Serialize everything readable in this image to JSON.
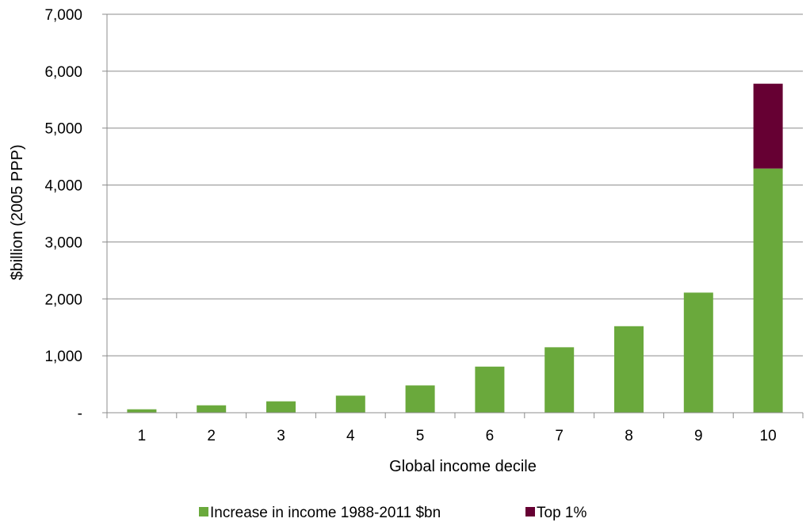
{
  "chart_data": {
    "type": "bar",
    "stacked": true,
    "xlabel": "Global income decile",
    "ylabel": "$billion (2005 PPP)",
    "categories": [
      "1",
      "2",
      "3",
      "4",
      "5",
      "6",
      "7",
      "8",
      "9",
      "10"
    ],
    "ylim": [
      0,
      7000
    ],
    "yticks": [
      {
        "value": 0,
        "label": "-"
      },
      {
        "value": 1000,
        "label": "1,000"
      },
      {
        "value": 2000,
        "label": "2,000"
      },
      {
        "value": 3000,
        "label": "3,000"
      },
      {
        "value": 4000,
        "label": "4,000"
      },
      {
        "value": 5000,
        "label": "5,000"
      },
      {
        "value": 6000,
        "label": "6,000"
      },
      {
        "value": 7000,
        "label": "7,000"
      }
    ],
    "grid": true,
    "legend_position": "bottom",
    "series": [
      {
        "name": "Increase in income 1988-2011 $bn",
        "color": "#6aa93c",
        "values": [
          60,
          130,
          200,
          300,
          480,
          810,
          1150,
          1520,
          2110,
          4290
        ]
      },
      {
        "name": "Top 1%",
        "color": "#660033",
        "values": [
          0,
          0,
          0,
          0,
          0,
          0,
          0,
          0,
          0,
          1490
        ]
      }
    ]
  }
}
